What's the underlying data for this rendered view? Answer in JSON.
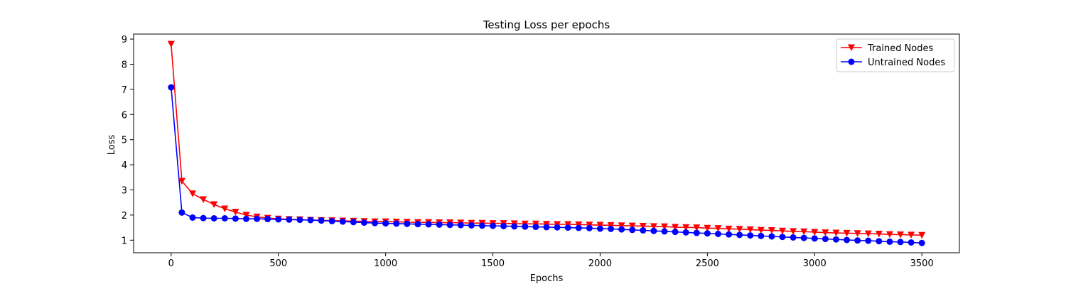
{
  "chart_data": {
    "type": "line",
    "title": "Testing Loss per epochs",
    "xlabel": "Epochs",
    "ylabel": "Loss",
    "xlim": [
      -175,
      3675
    ],
    "ylim": [
      0.5,
      9.2
    ],
    "xticks": [
      0,
      500,
      1000,
      1500,
      2000,
      2500,
      3000,
      3500
    ],
    "yticks": [
      1,
      2,
      3,
      4,
      5,
      6,
      7,
      8,
      9
    ],
    "legend": "top-right",
    "grid": false,
    "x": [
      0,
      50,
      100,
      150,
      200,
      250,
      300,
      350,
      400,
      450,
      500,
      550,
      600,
      650,
      700,
      750,
      800,
      850,
      900,
      950,
      1000,
      1050,
      1100,
      1150,
      1200,
      1250,
      1300,
      1350,
      1400,
      1450,
      1500,
      1550,
      1600,
      1650,
      1700,
      1750,
      1800,
      1850,
      1900,
      1950,
      2000,
      2050,
      2100,
      2150,
      2200,
      2250,
      2300,
      2350,
      2400,
      2450,
      2500,
      2550,
      2600,
      2650,
      2700,
      2750,
      2800,
      2850,
      2900,
      2950,
      3000,
      3050,
      3100,
      3150,
      3200,
      3250,
      3300,
      3350,
      3400,
      3450,
      3500
    ],
    "series": [
      {
        "name": "Trained Nodes",
        "color": "#ff0000",
        "marker": "triangle-down",
        "values": [
          8.8,
          3.35,
          2.85,
          2.62,
          2.42,
          2.25,
          2.12,
          2.0,
          1.93,
          1.88,
          1.85,
          1.83,
          1.82,
          1.8,
          1.79,
          1.78,
          1.77,
          1.76,
          1.75,
          1.74,
          1.74,
          1.73,
          1.72,
          1.71,
          1.71,
          1.7,
          1.7,
          1.69,
          1.68,
          1.68,
          1.67,
          1.67,
          1.66,
          1.65,
          1.65,
          1.64,
          1.63,
          1.63,
          1.62,
          1.61,
          1.6,
          1.59,
          1.58,
          1.57,
          1.56,
          1.55,
          1.54,
          1.52,
          1.51,
          1.5,
          1.48,
          1.47,
          1.45,
          1.44,
          1.42,
          1.4,
          1.39,
          1.37,
          1.35,
          1.34,
          1.32,
          1.3,
          1.29,
          1.28,
          1.27,
          1.26,
          1.25,
          1.23,
          1.22,
          1.21,
          1.2
        ]
      },
      {
        "name": "Untrained Nodes",
        "color": "#0000ff",
        "marker": "circle",
        "values": [
          7.08,
          2.1,
          1.9,
          1.88,
          1.87,
          1.87,
          1.86,
          1.85,
          1.85,
          1.84,
          1.83,
          1.82,
          1.81,
          1.8,
          1.78,
          1.76,
          1.74,
          1.72,
          1.7,
          1.68,
          1.67,
          1.66,
          1.65,
          1.64,
          1.63,
          1.62,
          1.61,
          1.6,
          1.59,
          1.58,
          1.57,
          1.56,
          1.55,
          1.54,
          1.53,
          1.52,
          1.51,
          1.5,
          1.49,
          1.48,
          1.46,
          1.45,
          1.43,
          1.41,
          1.39,
          1.37,
          1.35,
          1.33,
          1.31,
          1.29,
          1.27,
          1.25,
          1.23,
          1.21,
          1.19,
          1.17,
          1.15,
          1.13,
          1.11,
          1.09,
          1.07,
          1.05,
          1.03,
          1.01,
          0.99,
          0.98,
          0.96,
          0.94,
          0.93,
          0.91,
          0.89
        ]
      }
    ]
  }
}
